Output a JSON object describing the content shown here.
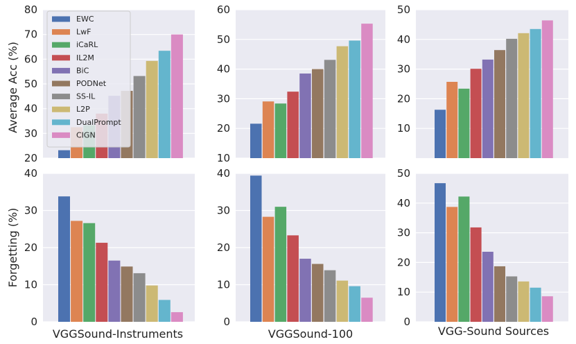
{
  "chart_data": {
    "type": "bar",
    "methods": [
      "EWC",
      "LwF",
      "iCaRL",
      "IL2M",
      "BiC",
      "PODNet",
      "SS-IL",
      "L2P",
      "DualPrompt",
      "CIGN"
    ],
    "colors": [
      "#4c72b0",
      "#dd8452",
      "#55a868",
      "#c44e52",
      "#8172b3",
      "#937860",
      "#8c8c8c",
      "#ccb974",
      "#64b5cd",
      "#da8bc3"
    ],
    "background": "#eaeaf2",
    "row_ylabels": [
      "Average Acc (%)",
      "Forgetting (%)"
    ],
    "column_labels": [
      "VGGSound-Instruments",
      "VGGSound-100",
      "VGG-Sound Sources"
    ],
    "panels": [
      {
        "row": 0,
        "col": 0,
        "ylabel": "Average Acc (%)",
        "ylim": [
          20,
          80
        ],
        "yticks": [
          20,
          30,
          40,
          50,
          60,
          70,
          80
        ],
        "values": [
          23.2,
          32.5,
          33.3,
          38.0,
          45.2,
          47.2,
          53.2,
          59.3,
          63.4,
          70.0
        ]
      },
      {
        "row": 0,
        "col": 1,
        "ylim": [
          10,
          60
        ],
        "yticks": [
          10,
          20,
          30,
          40,
          50,
          60
        ],
        "values": [
          21.6,
          29.1,
          28.4,
          32.4,
          38.5,
          40.0,
          43.1,
          47.7,
          49.6,
          55.3
        ]
      },
      {
        "row": 0,
        "col": 2,
        "ylim": [
          0,
          50
        ],
        "yticks": [
          10,
          20,
          30,
          40,
          50
        ],
        "values": [
          16.3,
          25.7,
          23.4,
          30.1,
          33.2,
          36.4,
          40.2,
          42.1,
          43.5,
          46.4
        ]
      },
      {
        "row": 1,
        "col": 0,
        "ylabel": "Forgetting (%)",
        "xlabel": "VGGSound-Instruments",
        "ylim": [
          0,
          40
        ],
        "yticks": [
          0,
          10,
          20,
          30,
          40
        ],
        "values": [
          33.8,
          27.2,
          26.6,
          21.3,
          16.5,
          14.9,
          13.1,
          9.8,
          5.9,
          2.6
        ]
      },
      {
        "row": 1,
        "col": 1,
        "xlabel": "VGGSound-100",
        "ylim": [
          0,
          40
        ],
        "yticks": [
          0,
          10,
          20,
          30,
          40
        ],
        "values": [
          39.4,
          28.3,
          31.0,
          23.3,
          17.0,
          15.6,
          13.9,
          11.1,
          9.6,
          6.5
        ]
      },
      {
        "row": 1,
        "col": 2,
        "xlabel": "VGG-Sound Sources",
        "ylim": [
          0,
          50
        ],
        "yticks": [
          0,
          10,
          20,
          30,
          40,
          50
        ],
        "values": [
          46.7,
          38.7,
          42.2,
          31.8,
          23.6,
          18.7,
          15.3,
          13.6,
          11.5,
          8.6
        ]
      }
    ],
    "legend": {
      "location": "upper-left of top-left panel",
      "entries": [
        "EWC",
        "LwF",
        "iCaRL",
        "IL2M",
        "BiC",
        "PODNet",
        "SS-IL",
        "L2P",
        "DualPrompt",
        "CIGN"
      ]
    }
  }
}
